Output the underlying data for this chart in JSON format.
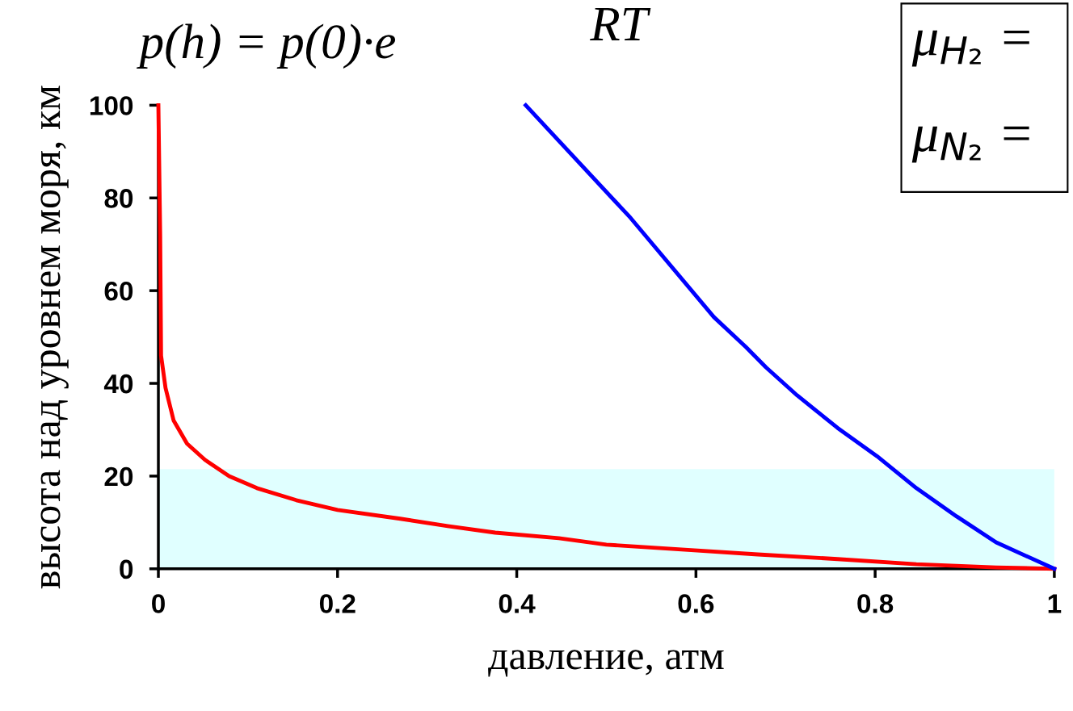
{
  "chart_data": {
    "type": "line",
    "xlabel": "давление, атм",
    "ylabel": "высота над уровнем моря, км",
    "annotations": [
      "p(h) = p(0)·e",
      "RT",
      "μ$_{H₂}$ =",
      "μ$_{N₂}$ ="
    ],
    "xlim": [
      0,
      1
    ],
    "ylim": [
      0,
      100
    ],
    "xticks": [
      0,
      0.2,
      0.4,
      0.6,
      0.8,
      1
    ],
    "yticks": [
      0,
      20,
      40,
      60,
      80,
      100
    ],
    "grid": false,
    "legend": false,
    "bands": [
      {
        "axis": "y",
        "from": 0,
        "to": 21.5,
        "color": "#e0ffff"
      }
    ],
    "series": [
      {
        "color": "#ff0000",
        "x": [
          0,
          0.002,
          0.003,
          0.008,
          0.017,
          0.032,
          0.052,
          0.079,
          0.11,
          0.154,
          0.2,
          0.27,
          0.323,
          0.376,
          0.447,
          0.5,
          0.598,
          0.669,
          0.758,
          0.846,
          0.935,
          1
        ],
        "values": [
          100,
          72,
          46,
          39,
          32,
          27,
          23.5,
          20,
          17.4,
          14.8,
          12.7,
          10.8,
          9.2,
          7.8,
          6.6,
          5.2,
          4,
          3.1,
          2.1,
          1,
          0.3,
          0
        ]
      },
      {
        "color": "#0000ff",
        "x": [
          0.41,
          0.527,
          0.62,
          0.656,
          0.678,
          0.713,
          0.758,
          0.802,
          0.846,
          0.891,
          0.935,
          1
        ],
        "values": [
          100,
          75.7,
          54.3,
          47.8,
          43.5,
          37.4,
          30.4,
          24.3,
          17.4,
          11.3,
          5.7,
          0
        ]
      }
    ]
  }
}
